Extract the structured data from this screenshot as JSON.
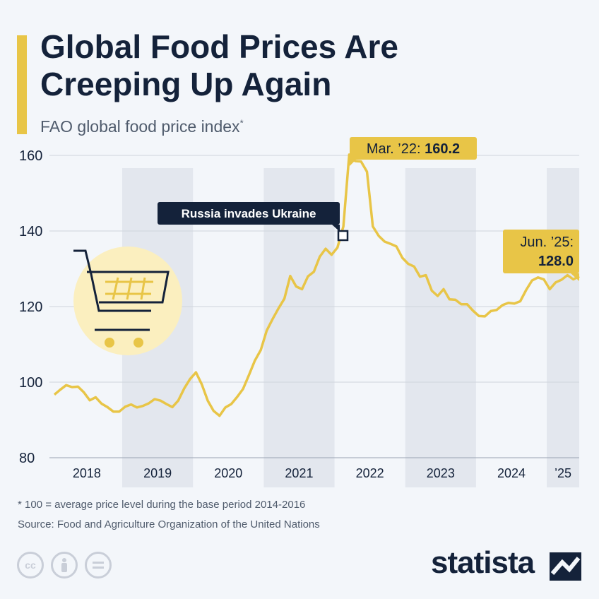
{
  "header": {
    "title": "Global Food Prices Are Creeping Up Again",
    "subtitle": "FAO global food price index",
    "subtitle_mark": "*"
  },
  "footer": {
    "footnote": "* 100 = average price level during the base period 2014-2016",
    "source": "Source: Food and Agriculture Organization of the United Nations",
    "brand": "statista",
    "license_icons": [
      "cc-icon",
      "person-icon",
      "equals-icon"
    ]
  },
  "colors": {
    "line": "#e8c547",
    "shade": "#e3e7ee",
    "text": "#14223a",
    "accent": "#e8c547",
    "background": "#f3f6fa"
  },
  "annotations": {
    "peak": {
      "prefix": "Mar. ’22: ",
      "value": "160.2"
    },
    "event": "Russia invades Ukraine",
    "latest": {
      "prefix": "Jun. ’25:",
      "value": "128.0"
    }
  },
  "chart_data": {
    "type": "line",
    "title": "FAO global food price index",
    "ylim": [
      80,
      160
    ],
    "yticks": [
      "80",
      "100",
      "120",
      "140",
      "160"
    ],
    "xticks": [
      "2018",
      "2019",
      "2020",
      "2021",
      "2022",
      "2023",
      "2024",
      "’25"
    ],
    "grid": "horizontal",
    "x_start": "2018-01",
    "x_end": "2025-06",
    "series": [
      {
        "values": [
          96.7,
          98.0,
          99.2,
          98.7,
          98.8,
          97.3,
          95.2,
          96.0,
          94.3,
          93.4,
          92.2,
          92.2,
          93.5,
          94.1,
          93.3,
          93.7,
          94.4,
          95.5,
          95.1,
          94.2,
          93.4,
          95.1,
          98.3,
          100.8,
          102.6,
          99.4,
          95.1,
          92.4,
          91.1,
          93.3,
          94.2,
          96.1,
          98.2,
          101.9,
          105.7,
          108.5,
          113.6,
          116.7,
          119.5,
          122.1,
          128.1,
          125.3,
          124.6,
          128.0,
          129.2,
          133.2,
          135.3,
          133.7,
          135.6,
          141.2,
          160.2,
          158.5,
          158.4,
          155.7,
          141.2,
          138.7,
          137.2,
          136.6,
          135.9,
          132.9,
          131.3,
          130.6,
          127.9,
          128.3,
          124.2,
          122.8,
          124.6,
          121.9,
          121.8,
          120.6,
          120.6,
          118.9,
          117.5,
          117.4,
          118.8,
          119.1,
          120.4,
          121.0,
          120.8,
          121.4,
          124.4,
          126.9,
          127.7,
          127.2,
          124.6,
          126.4,
          127.1,
          128.3,
          127.2,
          128.0
        ]
      }
    ]
  }
}
